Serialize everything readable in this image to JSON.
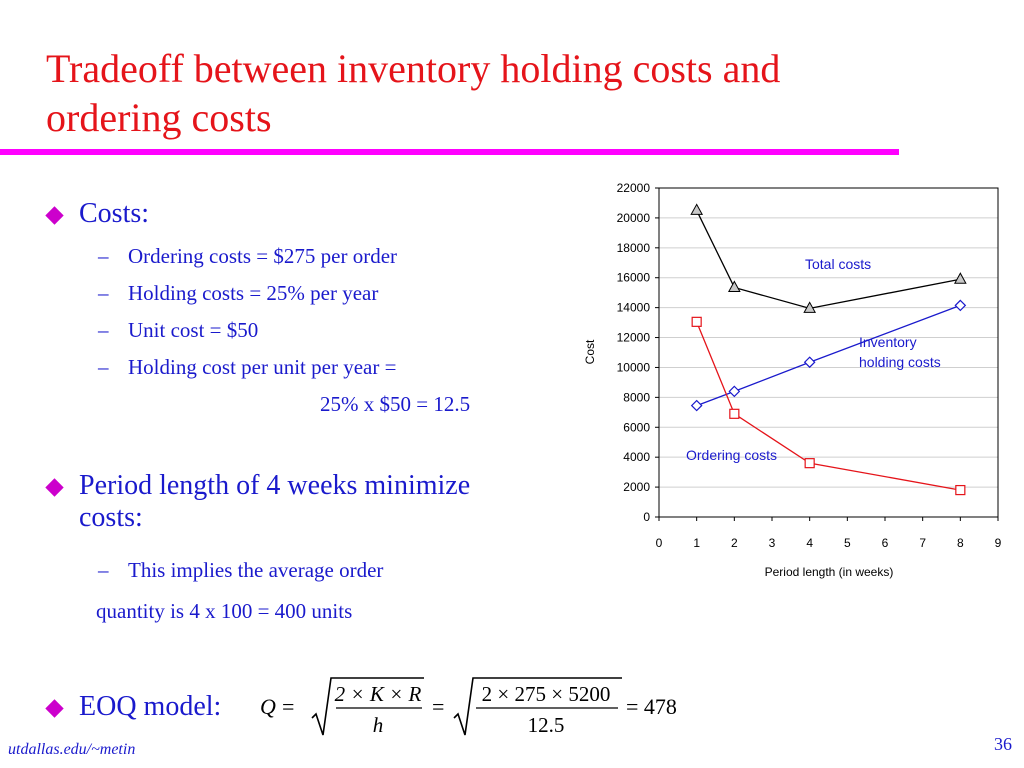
{
  "slide": {
    "title_line1": "Tradeoff between inventory holding costs and",
    "title_line2": "ordering costs",
    "accent_color": "#ff00ff",
    "title_color": "#e5141a",
    "text_color": "#1a1acc",
    "bullets": [
      {
        "label": "Costs:",
        "subs": [
          "Ordering costs = $275 per order",
          "Holding costs = 25% per year",
          "Unit cost = $50",
          "Holding cost per unit per year ="
        ],
        "continuation": "25% x $50 = 12.5"
      },
      {
        "label_line1": "Period length of 4 weeks minimize",
        "label_line2": "costs:",
        "sub": "This implies the average order",
        "continuation": "quantity is 4 x 100 = 400 units"
      },
      {
        "label": "EOQ model:"
      }
    ],
    "formula": {
      "lhs": "Q",
      "eq": "=",
      "num1": "2 × K × R",
      "den1": "h",
      "num2": "2 × 275 × 5200",
      "den2": "12.5",
      "result": "= 478"
    },
    "footer": "utdallas.edu/~metin",
    "page_number": "36"
  },
  "chart_data": {
    "type": "line",
    "xlabel": "Period length (in weeks)",
    "ylabel": "Cost",
    "xlim": [
      0,
      9
    ],
    "ylim": [
      0,
      22000
    ],
    "x_ticks": [
      "0",
      "1",
      "2",
      "3",
      "4",
      "5",
      "6",
      "7",
      "8",
      "9"
    ],
    "y_ticks": [
      "0",
      "2000",
      "4000",
      "6000",
      "8000",
      "10000",
      "12000",
      "14000",
      "16000",
      "18000",
      "20000",
      "22000"
    ],
    "grid": "horizontal",
    "series": [
      {
        "name": "Total costs",
        "marker": "triangle",
        "color": "#000000",
        "x": [
          1,
          2,
          4,
          8
        ],
        "y": [
          20500,
          15350,
          13950,
          15900
        ]
      },
      {
        "name": "Inventory holding costs",
        "name_line1": "Inventory",
        "name_line2": "holding costs",
        "marker": "diamond",
        "color": "#1a1acc",
        "x": [
          1,
          2,
          4,
          8
        ],
        "y": [
          7450,
          8400,
          10350,
          14150
        ]
      },
      {
        "name": "Ordering costs",
        "marker": "square",
        "color": "#e5141a",
        "x": [
          1,
          2,
          4,
          8
        ],
        "y": [
          13050,
          6900,
          3600,
          1800
        ]
      }
    ]
  }
}
